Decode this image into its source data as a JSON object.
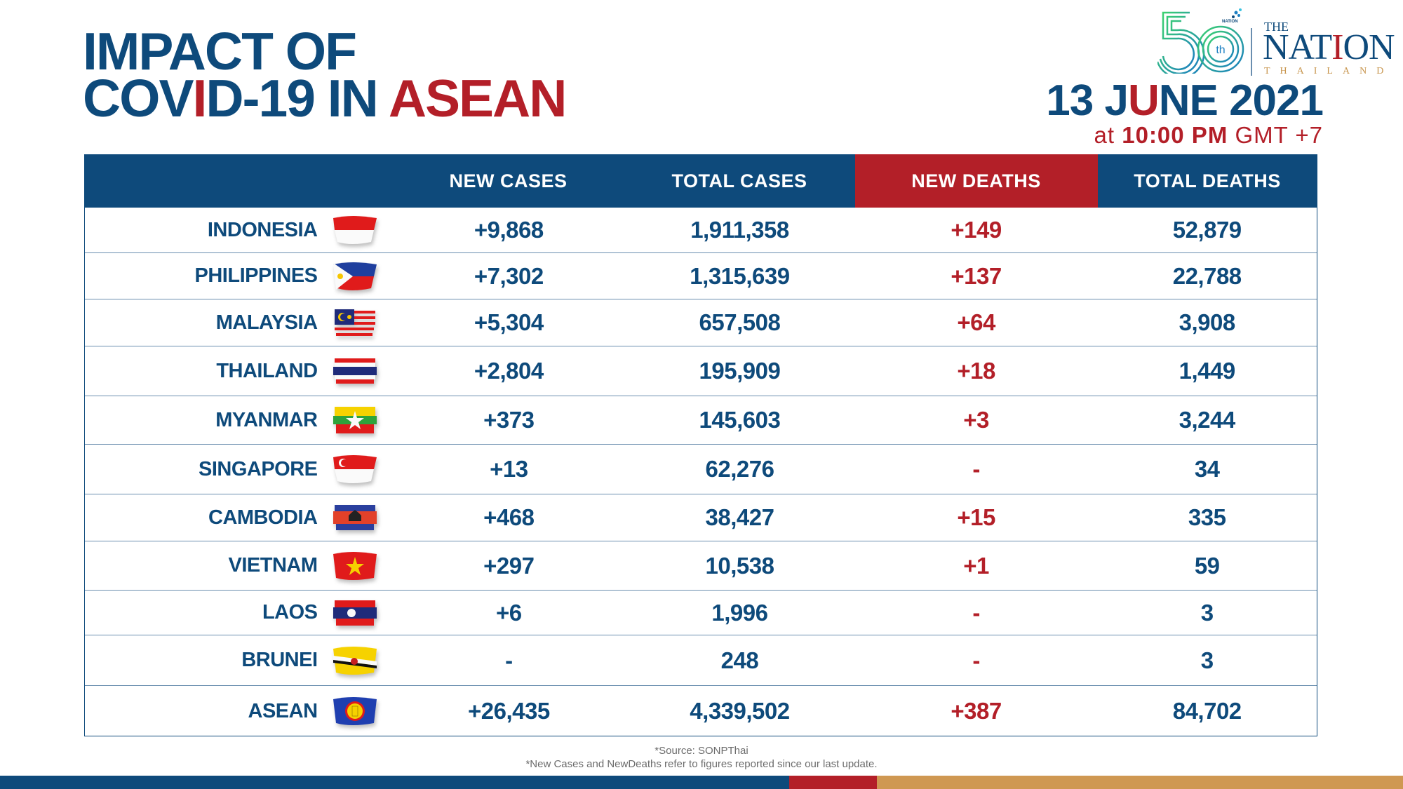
{
  "header": {
    "title_line1": "IMPACT OF",
    "title_line2_a": "COV",
    "title_line2_b": "I",
    "title_line2_c": "D-19 IN ",
    "title_line2_d": "ASEAN",
    "date_a": "13 J",
    "date_b": "U",
    "date_c": "NE 2021",
    "time_a": "at ",
    "time_b": "10:00 PM",
    "time_c": " GMT +7"
  },
  "logo": {
    "anniversary": "50",
    "anniversary_suffix": "th",
    "group_label": "NATION GROUP",
    "the": "THE",
    "name_a": "NAT",
    "name_b": "I",
    "name_c": "ON",
    "sub": "THAILAND"
  },
  "colors": {
    "navy": "#0e4a7b",
    "red": "#b31f28",
    "tan": "#cf9852",
    "divider": "#6a8eaf"
  },
  "table": {
    "columns": [
      "",
      "NEW CASES",
      "TOTAL CASES",
      "NEW DEATHS",
      "TOTAL DEATHS"
    ],
    "rows": [
      {
        "country": "INDONESIA",
        "flag": "indonesia-flag-icon",
        "new_cases": "+9,868",
        "total_cases": "1,911,358",
        "new_deaths": "+149",
        "total_deaths": "52,879"
      },
      {
        "country": "PHILIPPINES",
        "flag": "philippines-flag-icon",
        "new_cases": "+7,302",
        "total_cases": "1,315,639",
        "new_deaths": "+137",
        "total_deaths": "22,788"
      },
      {
        "country": "MALAYSIA",
        "flag": "malaysia-flag-icon",
        "new_cases": "+5,304",
        "total_cases": "657,508",
        "new_deaths": "+64",
        "total_deaths": "3,908"
      },
      {
        "country": "THAILAND",
        "flag": "thailand-flag-icon",
        "new_cases": "+2,804",
        "total_cases": "195,909",
        "new_deaths": "+18",
        "total_deaths": "1,449"
      },
      {
        "country": "MYANMAR",
        "flag": "myanmar-flag-icon",
        "new_cases": "+373",
        "total_cases": "145,603",
        "new_deaths": "+3",
        "total_deaths": "3,244"
      },
      {
        "country": "SINGAPORE",
        "flag": "singapore-flag-icon",
        "new_cases": "+13",
        "total_cases": "62,276",
        "new_deaths": "-",
        "total_deaths": "34"
      },
      {
        "country": "CAMBODIA",
        "flag": "cambodia-flag-icon",
        "new_cases": "+468",
        "total_cases": "38,427",
        "new_deaths": "+15",
        "total_deaths": "335"
      },
      {
        "country": "VIETNAM",
        "flag": "vietnam-flag-icon",
        "new_cases": "+297",
        "total_cases": "10,538",
        "new_deaths": "+1",
        "total_deaths": "59"
      },
      {
        "country": "LAOS",
        "flag": "laos-flag-icon",
        "new_cases": "+6",
        "total_cases": "1,996",
        "new_deaths": "-",
        "total_deaths": "3"
      },
      {
        "country": "BRUNEI",
        "flag": "brunei-flag-icon",
        "new_cases": "-",
        "total_cases": "248",
        "new_deaths": "-",
        "total_deaths": "3"
      },
      {
        "country": "ASEAN",
        "flag": "asean-flag-icon",
        "new_cases": "+26,435",
        "total_cases": "4,339,502",
        "new_deaths": "+387",
        "total_deaths": "84,702"
      }
    ]
  },
  "footer": {
    "source": "*Source: SONPThai",
    "note": "*New Cases and NewDeaths refer to figures reported since our last update."
  }
}
